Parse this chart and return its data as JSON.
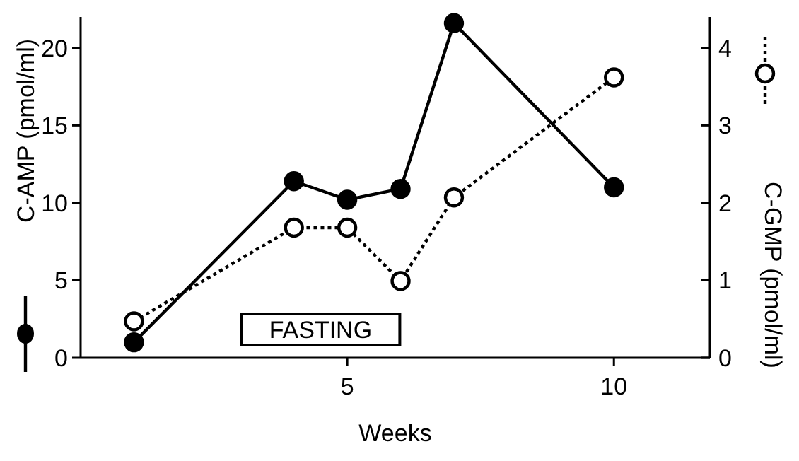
{
  "chart_data": {
    "type": "line",
    "xlabel": "Weeks",
    "ylabel": "C-AMP (pmol/ml)",
    "y2label": "C-GMP (pmol/ml)",
    "x": [
      1,
      4,
      5,
      6,
      7,
      10
    ],
    "series": [
      {
        "color": "#000000",
        "values": [
          1.0,
          11.4,
          10.2,
          10.9,
          21.6,
          11.0
        ],
        "line_style": "solid"
      },
      {
        "color": "#000000",
        "values": [
          0.47,
          1.68,
          1.68,
          0.99,
          2.07,
          3.62
        ],
        "line_style": "dotted",
        "axis": "y2"
      }
    ],
    "xlim": [
      0,
      11.8
    ],
    "xticks": [
      5,
      10
    ],
    "ylim": [
      0,
      22
    ],
    "yticks": [
      0,
      5,
      10,
      15,
      20
    ],
    "y2lim": [
      0,
      4.4
    ],
    "y2ticks": [
      0,
      1,
      2,
      3,
      4
    ],
    "marker": "circle",
    "grid": false,
    "annotations": [
      "FASTING"
    ]
  }
}
